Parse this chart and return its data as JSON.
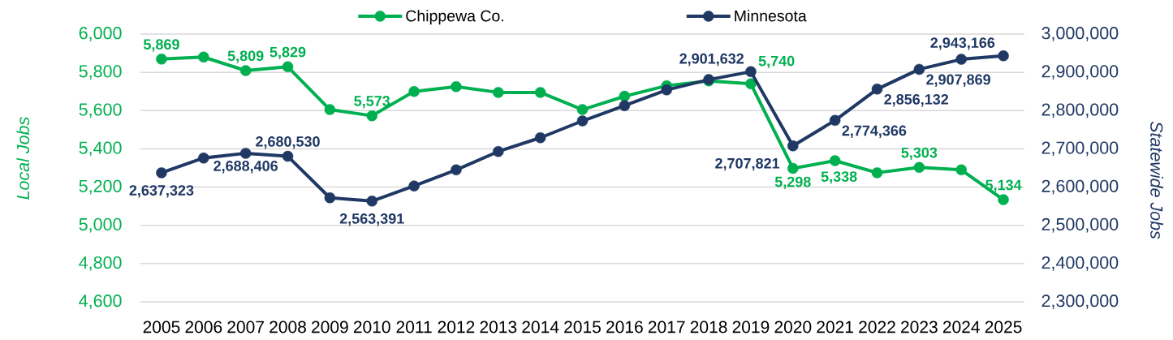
{
  "chart_data": {
    "type": "line",
    "categories": [
      "2005",
      "2006",
      "2007",
      "2008",
      "2009",
      "2010",
      "2011",
      "2012",
      "2013",
      "2014",
      "2015",
      "2016",
      "2017",
      "2018",
      "2019",
      "2020",
      "2021",
      "2022",
      "2023",
      "2024",
      "2025"
    ],
    "ylabel": "Local Jobs",
    "y2label": "Statewide Jobs",
    "ylim": [
      4600,
      6000
    ],
    "yticks": [
      {
        "value": 4600,
        "label": "4,600"
      },
      {
        "value": 4800,
        "label": "4,800"
      },
      {
        "value": 5000,
        "label": "5,000"
      },
      {
        "value": 5200,
        "label": "5,200"
      },
      {
        "value": 5400,
        "label": "5,400"
      },
      {
        "value": 5600,
        "label": "5,600"
      },
      {
        "value": 5800,
        "label": "5,800"
      },
      {
        "value": 6000,
        "label": "6,000"
      }
    ],
    "y2lim": [
      2300000,
      3000000
    ],
    "y2ticks": [
      {
        "value": 2300000,
        "label": "2,300,000"
      },
      {
        "value": 2400000,
        "label": "2,400,000"
      },
      {
        "value": 2500000,
        "label": "2,500,000"
      },
      {
        "value": 2600000,
        "label": "2,600,000"
      },
      {
        "value": 2700000,
        "label": "2,700,000"
      },
      {
        "value": 2800000,
        "label": "2,800,000"
      },
      {
        "value": 2900000,
        "label": "2,900,000"
      },
      {
        "value": 3000000,
        "label": "3,000,000"
      }
    ],
    "grid": "y",
    "legend": "top",
    "marker": "circle",
    "series": [
      {
        "name": "Chippewa Co.",
        "color": "#00b050",
        "values": [
          5869,
          5880,
          5809,
          5829,
          5605,
          5573,
          5700,
          5725,
          5695,
          5695,
          5605,
          5675,
          5730,
          5755,
          5740,
          5298,
          5338,
          5275,
          5303,
          5290,
          5134
        ],
        "value_labels": [
          "5,869",
          null,
          "5,809",
          "5,829",
          null,
          "5,573",
          null,
          null,
          null,
          null,
          null,
          null,
          null,
          null,
          "5,740",
          "5,298",
          "5,338",
          null,
          "5,303",
          null,
          "5,134"
        ]
      },
      {
        "name": "Minnesota",
        "color": "#203864",
        "axis": "y2",
        "values": [
          2637323,
          2676000,
          2688406,
          2680530,
          2572000,
          2563391,
          2603000,
          2645000,
          2693000,
          2729000,
          2773000,
          2813000,
          2854000,
          2881000,
          2901632,
          2707821,
          2774366,
          2856132,
          2907869,
          2934000,
          2943166
        ],
        "value_labels": [
          "2,637,323",
          null,
          "2,688,406",
          "2,680,530",
          null,
          "2,563,391",
          null,
          null,
          null,
          null,
          null,
          null,
          null,
          null,
          "2,901,632",
          "2,707,821",
          "2,774,366",
          "2,856,132",
          "2,907,869",
          null,
          "2,943,166"
        ]
      }
    ]
  }
}
